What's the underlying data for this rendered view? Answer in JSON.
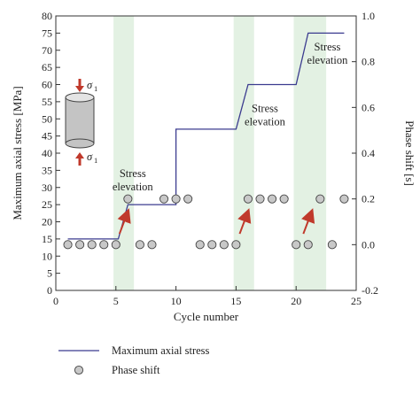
{
  "chart_data": {
    "type": "line",
    "xlabel": "Cycle number",
    "ylabel": "Maximum axial stress [MPa]",
    "y2label": "Phase shift [s]",
    "xlim": [
      0,
      25
    ],
    "ylim": [
      0,
      80
    ],
    "y2lim": [
      -0.2,
      1.0
    ],
    "x_ticks": [
      0,
      5,
      10,
      15,
      20,
      25
    ],
    "y_ticks": [
      0,
      5,
      10,
      15,
      20,
      25,
      30,
      35,
      40,
      45,
      50,
      55,
      60,
      65,
      70,
      75,
      80
    ],
    "y2_ticks": [
      -0.2,
      0.0,
      0.2,
      0.4,
      0.6,
      0.8,
      1.0
    ],
    "x_tick_labels": [
      "0",
      "5",
      "10",
      "15",
      "20",
      "25"
    ],
    "y_tick_labels": [
      "0",
      "5",
      "10",
      "15",
      "20",
      "25",
      "30",
      "35",
      "40",
      "45",
      "50",
      "55",
      "60",
      "65",
      "70",
      "75",
      "80"
    ],
    "y2_tick_labels": [
      "-0.2",
      "0.0",
      "0.2",
      "0.4",
      "0.6",
      "0.8",
      "1.0"
    ],
    "grid": false,
    "legend_position": "bottom",
    "shaded_bands": [
      [
        4.8,
        6.5
      ],
      [
        14.8,
        16.5
      ],
      [
        19.8,
        22.5
      ]
    ],
    "series": [
      {
        "name": "Maximum axial stress",
        "axis": "left",
        "color": "#3b3b8f",
        "x": [
          1,
          5.2,
          6,
          10,
          10,
          15,
          16,
          20,
          21,
          24
        ],
        "y": [
          15,
          15,
          25,
          25,
          47,
          47,
          60,
          60,
          75,
          75
        ]
      },
      {
        "name": "Phase shift",
        "axis": "right",
        "color": "#c8c8c8",
        "x": [
          1,
          2,
          3,
          4,
          5,
          6,
          7,
          8,
          9,
          10,
          11,
          12,
          13,
          14,
          15,
          16,
          17,
          18,
          19,
          20,
          21,
          22,
          23,
          24
        ],
        "y": [
          0.0,
          0.0,
          0.0,
          0.0,
          0.0,
          0.2,
          0.0,
          0.0,
          0.2,
          0.2,
          0.2,
          0.0,
          0.0,
          0.0,
          0.0,
          0.2,
          0.2,
          0.2,
          0.2,
          0.0,
          0.0,
          0.2,
          0.0,
          0.2
        ]
      }
    ],
    "annotations": [
      {
        "id": "stress-elevation-1",
        "line1": "Stress",
        "line2": "elevation",
        "x": 6.4,
        "y": 33
      },
      {
        "id": "stress-elevation-2",
        "line1": "Stress",
        "line2": "elevation",
        "x": 17.4,
        "y": 52
      },
      {
        "id": "stress-elevation-3",
        "line1": "Stress",
        "line2": "elevation",
        "x": 22.6,
        "y": 70
      }
    ],
    "arrows": [
      {
        "x1": 5.3,
        "y1": 16.5,
        "x2": 6.0,
        "y2": 23
      },
      {
        "x1": 15.3,
        "y1": 16.5,
        "x2": 16.0,
        "y2": 23
      },
      {
        "x1": 20.6,
        "y1": 16.5,
        "x2": 21.3,
        "y2": 23
      }
    ],
    "inset_labels": {
      "sigma_top": "σ",
      "sigma_top_sub": "1",
      "sigma_bottom": "σ",
      "sigma_bottom_sub": "1"
    }
  }
}
